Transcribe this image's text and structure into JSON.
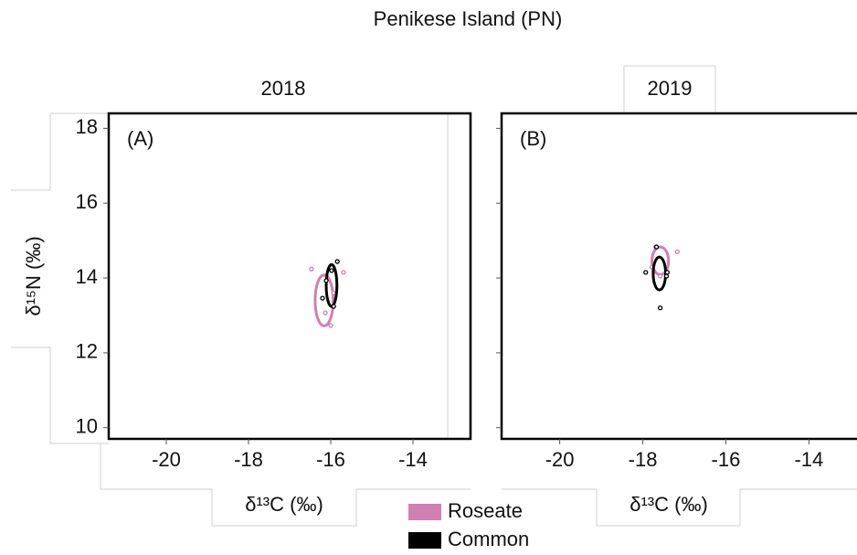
{
  "title": "Penikese Island (PN)",
  "chart_data": [
    {
      "type": "scatter",
      "title": "2018",
      "panel_label": "(A)",
      "x_label": "δ¹³C (‰)",
      "y_label": "δ¹⁵N (‰)",
      "xlim": [
        -21.4,
        -12.6
      ],
      "ylim": [
        9.7,
        18.4
      ],
      "xticks": [
        -20,
        -18,
        -16,
        -14
      ],
      "yticks": [
        10,
        12,
        14,
        16,
        18
      ],
      "series": [
        {
          "name": "Roseate",
          "color": "#d17fb0",
          "x": [
            -16.47,
            -15.69,
            -16.0,
            -16.13,
            -15.93
          ],
          "y": [
            14.24,
            14.15,
            12.73,
            13.07,
            13.6
          ],
          "ellipse": {
            "cx": -16.16,
            "cy": 13.4,
            "rx": 0.22,
            "ry": 0.68
          }
        },
        {
          "name": "Common",
          "color": "#000000",
          "x": [
            -15.84,
            -15.98,
            -16.2,
            -15.93,
            -16.11
          ],
          "y": [
            14.44,
            14.2,
            13.46,
            13.24,
            13.93
          ],
          "ellipse": {
            "cx": -15.98,
            "cy": 13.8,
            "rx": 0.13,
            "ry": 0.56
          }
        }
      ]
    },
    {
      "type": "scatter",
      "title": "2019",
      "panel_label": "(B)",
      "x_label": "δ¹³C (‰)",
      "xlim": [
        -21.4,
        -12.6
      ],
      "ylim": [
        9.7,
        18.4
      ],
      "xticks": [
        -20,
        -18,
        -16,
        -14
      ],
      "yticks": [
        10,
        12,
        14,
        16,
        18
      ],
      "series": [
        {
          "color": "#d17fb0",
          "x": [
            -17.17,
            -17.69,
            -17.58,
            -17.78
          ],
          "y": [
            14.7,
            14.83,
            14.05,
            14.29
          ],
          "ellipse": {
            "cx": -17.58,
            "cy": 14.46,
            "rx": 0.2,
            "ry": 0.37
          }
        },
        {
          "color": "#000000",
          "x": [
            -17.93,
            -17.41,
            -17.58,
            -17.67,
            -17.43
          ],
          "y": [
            14.15,
            14.15,
            13.2,
            14.83,
            14.05
          ],
          "ellipse": {
            "cx": -17.6,
            "cy": 14.12,
            "rx": 0.15,
            "ry": 0.44
          }
        }
      ]
    }
  ]
}
